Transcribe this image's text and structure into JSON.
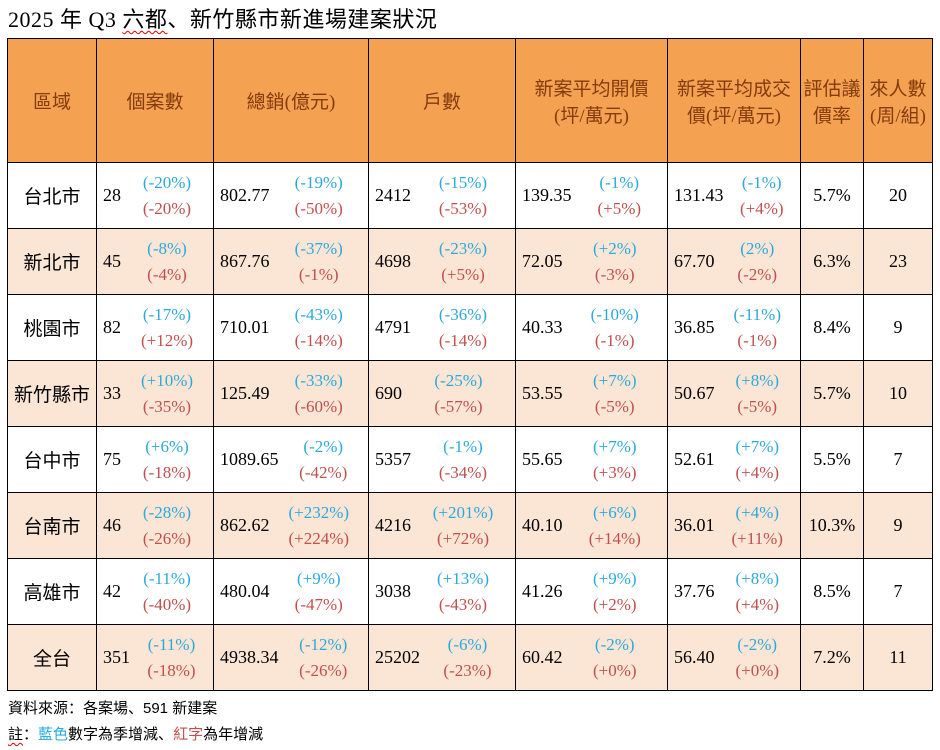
{
  "title": {
    "pre": "2025 年 Q3 ",
    "wavy": "六都",
    "post": "、新竹縣市新進場建案狀況"
  },
  "colors": {
    "header_bg": "#f4a152",
    "header_text": "#843c0c",
    "stripe_bg": "#fbe5d5",
    "quarter_change_blue": "#2ca9dc",
    "year_change_red": "#c0504d",
    "border": "#000000",
    "wavy_underline": "#e00000"
  },
  "table": {
    "headers": [
      "區域",
      "個案數",
      "總銷(億元)",
      "戶數",
      "新案平均開價 (坪/萬元)",
      "新案平均成交價(坪/萬元)",
      "評估議價率",
      "來人數 (周/組)"
    ],
    "rows": [
      {
        "region": "台北市",
        "cases": {
          "value": "28",
          "q": "(-20%)",
          "y": "(-20%)"
        },
        "total_sales": {
          "value": "802.77",
          "q": "(-19%)",
          "y": "(-50%)"
        },
        "units": {
          "value": "2412",
          "q": "(-15%)",
          "y": "(-53%)"
        },
        "asking_price": {
          "value": "139.35",
          "q": "(-1%)",
          "y": "(+5%)"
        },
        "transaction_price": {
          "value": "131.43",
          "q": "(-1%)",
          "y": "(+4%)"
        },
        "negotiation_rate": "5.7%",
        "visitors": "20"
      },
      {
        "region": "新北市",
        "cases": {
          "value": "45",
          "q": "(-8%)",
          "y": "(-4%)"
        },
        "total_sales": {
          "value": "867.76",
          "q": "(-37%)",
          "y": "(-1%)"
        },
        "units": {
          "value": "4698",
          "q": "(-23%)",
          "y": "(+5%)"
        },
        "asking_price": {
          "value": "72.05",
          "q": "(+2%)",
          "y": "(-3%)"
        },
        "transaction_price": {
          "value": "67.70",
          "q": "(2%)",
          "y": "(-2%)"
        },
        "negotiation_rate": "6.3%",
        "visitors": "23"
      },
      {
        "region": "桃園市",
        "cases": {
          "value": "82",
          "q": "(-17%)",
          "y": "(+12%)"
        },
        "total_sales": {
          "value": "710.01",
          "q": "(-43%)",
          "y": "(-14%)"
        },
        "units": {
          "value": "4791",
          "q": "(-36%)",
          "y": "(-14%)"
        },
        "asking_price": {
          "value": "40.33",
          "q": "(-10%)",
          "y": "(-1%)"
        },
        "transaction_price": {
          "value": "36.85",
          "q": "(-11%)",
          "y": "(-1%)"
        },
        "negotiation_rate": "8.4%",
        "visitors": "9"
      },
      {
        "region": "新竹縣市",
        "cases": {
          "value": "33",
          "q": "(+10%)",
          "y": "(-35%)"
        },
        "total_sales": {
          "value": "125.49",
          "q": "(-33%)",
          "y": "(-60%)"
        },
        "units": {
          "value": "690",
          "q": "(-25%)",
          "y": "(-57%)"
        },
        "asking_price": {
          "value": "53.55",
          "q": "(+7%)",
          "y": "(-5%)"
        },
        "transaction_price": {
          "value": "50.67",
          "q": "(+8%)",
          "y": "(-5%)"
        },
        "negotiation_rate": "5.7%",
        "visitors": "10"
      },
      {
        "region": "台中市",
        "cases": {
          "value": "75",
          "q": "(+6%)",
          "y": "(-18%)"
        },
        "total_sales": {
          "value": "1089.65",
          "q": "(-2%)",
          "y": "(-42%)"
        },
        "units": {
          "value": "5357",
          "q": "(-1%)",
          "y": "(-34%)"
        },
        "asking_price": {
          "value": "55.65",
          "q": "(+7%)",
          "y": "(+3%)"
        },
        "transaction_price": {
          "value": "52.61",
          "q": "(+7%)",
          "y": "(+4%)"
        },
        "negotiation_rate": "5.5%",
        "visitors": "7"
      },
      {
        "region": "台南市",
        "cases": {
          "value": "46",
          "q": "(-28%)",
          "y": "(-26%)"
        },
        "total_sales": {
          "value": "862.62",
          "q": "(+232%)",
          "y": "(+224%)"
        },
        "units": {
          "value": "4216",
          "q": "(+201%)",
          "y": "(+72%)"
        },
        "asking_price": {
          "value": "40.10",
          "q": "(+6%)",
          "y": "(+14%)"
        },
        "transaction_price": {
          "value": "36.01",
          "q": "(+4%)",
          "y": "(+11%)"
        },
        "negotiation_rate": "10.3%",
        "visitors": "9"
      },
      {
        "region": "高雄市",
        "cases": {
          "value": "42",
          "q": "(-11%)",
          "y": "(-40%)"
        },
        "total_sales": {
          "value": "480.04",
          "q": "(+9%)",
          "y": "(-47%)"
        },
        "units": {
          "value": "3038",
          "q": "(+13%)",
          "y": "(-43%)"
        },
        "asking_price": {
          "value": "41.26",
          "q": "(+9%)",
          "y": "(+2%)"
        },
        "transaction_price": {
          "value": "37.76",
          "q": "(+8%)",
          "y": "(+4%)"
        },
        "negotiation_rate": "8.5%",
        "visitors": "7"
      },
      {
        "region": "全台",
        "cases": {
          "value": "351",
          "q": "(-11%)",
          "y": "(-18%)"
        },
        "total_sales": {
          "value": "4938.34",
          "q": "(-12%)",
          "y": "(-26%)"
        },
        "units": {
          "value": "25202",
          "q": "(-6%)",
          "y": "(-23%)"
        },
        "asking_price": {
          "value": "60.42",
          "q": "(-2%)",
          "y": "(+0%)"
        },
        "transaction_price": {
          "value": "56.40",
          "q": "(-2%)",
          "y": "(+0%)"
        },
        "negotiation_rate": "7.2%",
        "visitors": "11"
      }
    ]
  },
  "footer": {
    "source": "資料來源：各案場、591 新建案",
    "note_wavy": "註",
    "note_colon": "：",
    "note_blue": "藍色",
    "note_mid": "數字為季增減、",
    "note_red": "紅字",
    "note_suffix": "為年增減"
  }
}
